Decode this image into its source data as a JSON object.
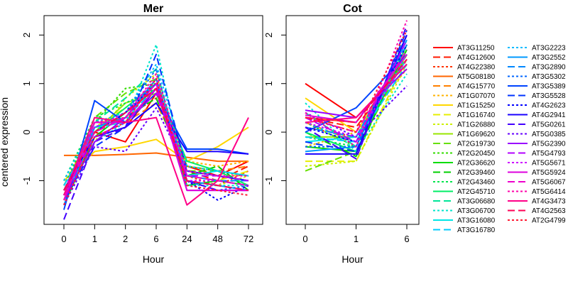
{
  "ylabel": "centered expression",
  "chart_data": [
    {
      "type": "line",
      "title": "Mer",
      "xlabel": "Hour",
      "ylabel": "centered expression",
      "categories": [
        "0",
        "1",
        "2",
        "6",
        "24",
        "48",
        "72"
      ],
      "ylim": [
        -1.9,
        2.4
      ],
      "yticks": [
        -1,
        0,
        1,
        2
      ],
      "grid": false,
      "series": [
        {
          "name": "AT3G11250",
          "color": "#ff0000",
          "values": [
            -1.2,
            0.0,
            -0.2,
            0.8,
            -0.7,
            -0.9,
            -0.6
          ]
        },
        {
          "name": "AT4G12600",
          "color": "#ff1a00",
          "values": [
            -1.4,
            -0.1,
            0.1,
            0.9,
            -0.8,
            -1.0,
            -0.7
          ]
        },
        {
          "name": "AT4G22380",
          "color": "#ff3300",
          "values": [
            -1.3,
            0.2,
            0.3,
            0.7,
            -0.9,
            -1.1,
            -0.8
          ]
        },
        {
          "name": "AT5G08180",
          "color": "#ff6600",
          "values": [
            -0.48,
            -0.48,
            -0.46,
            -0.43,
            -0.52,
            -0.6,
            -0.6
          ]
        },
        {
          "name": "AT4G15770",
          "color": "#ff8000",
          "values": [
            -1.1,
            0.1,
            0.2,
            0.6,
            -0.7,
            -0.8,
            -0.7
          ]
        },
        {
          "name": "AT1G07070",
          "color": "#ffb300",
          "values": [
            -1.3,
            0.0,
            0.4,
            0.9,
            -0.6,
            -0.7,
            -0.6
          ]
        },
        {
          "name": "AT1G15250",
          "color": "#ffd700",
          "values": [
            -1.0,
            -0.4,
            -0.3,
            -0.15,
            -0.6,
            -0.3,
            0.1
          ]
        },
        {
          "name": "AT1G16740",
          "color": "#e6ee00",
          "values": [
            -1.2,
            0.1,
            0.5,
            1.0,
            -0.9,
            -1.0,
            -0.8
          ]
        },
        {
          "name": "AT1G26880",
          "color": "#ccf000",
          "values": [
            -1.4,
            -0.2,
            0.7,
            1.2,
            -1.0,
            -1.1,
            -0.9
          ]
        },
        {
          "name": "AT1G69620",
          "color": "#99e600",
          "values": [
            -1.2,
            0.0,
            0.6,
            0.8,
            -0.8,
            -0.9,
            -1.0
          ]
        },
        {
          "name": "AT2G19730",
          "color": "#66e000",
          "values": [
            -1.3,
            0.3,
            0.8,
            1.1,
            -0.8,
            -0.8,
            -0.9
          ]
        },
        {
          "name": "AT2G20450",
          "color": "#33dd00",
          "values": [
            -1.1,
            0.2,
            0.9,
            1.0,
            -0.7,
            -0.8,
            -0.9
          ]
        },
        {
          "name": "AT2G36620",
          "color": "#00dd00",
          "values": [
            -1.5,
            -0.1,
            0.4,
            0.9,
            -1.1,
            -1.0,
            -1.1
          ]
        },
        {
          "name": "AT2G39460",
          "color": "#00d000",
          "values": [
            -1.2,
            0.1,
            0.3,
            0.7,
            -0.9,
            -0.7,
            -1.2
          ]
        },
        {
          "name": "AT2G43460",
          "color": "#00e64d",
          "values": [
            -1.0,
            0.3,
            0.6,
            0.9,
            -0.8,
            -0.9,
            -1.0
          ]
        },
        {
          "name": "AT2G45710",
          "color": "#00ee66",
          "values": [
            -1.3,
            0.0,
            0.5,
            1.0,
            -0.6,
            -0.8,
            -1.1
          ]
        },
        {
          "name": "AT3G06680",
          "color": "#00e699",
          "values": [
            -1.4,
            0.2,
            0.7,
            1.3,
            -1.0,
            -1.1,
            -1.2
          ]
        },
        {
          "name": "AT3G06700",
          "color": "#00e6cc",
          "values": [
            -1.2,
            -0.2,
            0.2,
            1.8,
            -1.1,
            -1.1,
            -1.1
          ]
        },
        {
          "name": "AT3G16080",
          "color": "#00e6e6",
          "values": [
            -1.3,
            0.1,
            0.2,
            1.1,
            -0.9,
            -0.8,
            -0.9
          ]
        },
        {
          "name": "AT3G16780",
          "color": "#00ccff",
          "values": [
            -1.1,
            0.0,
            0.3,
            0.9,
            -0.8,
            -0.9,
            -1.0
          ]
        },
        {
          "name": "AT3G2223",
          "color": "#00bbff",
          "values": [
            -1.0,
            0.2,
            0.4,
            1.4,
            -0.7,
            -0.8,
            -0.9
          ]
        },
        {
          "name": "AT3G2552",
          "color": "#0099ff",
          "values": [
            -1.5,
            0.1,
            0.3,
            1.1,
            -1.0,
            -1.1,
            -1.2
          ]
        },
        {
          "name": "AT3G2890",
          "color": "#0088ff",
          "values": [
            -1.2,
            0.2,
            0.2,
            0.9,
            -0.9,
            -1.0,
            -1.0
          ]
        },
        {
          "name": "AT3G5302",
          "color": "#0066ff",
          "values": [
            -1.3,
            0.0,
            0.4,
            1.3,
            -1.0,
            -1.2,
            -1.1
          ]
        },
        {
          "name": "AT3G5389",
          "color": "#0044ff",
          "values": [
            -1.6,
            0.65,
            0.2,
            0.8,
            -0.35,
            -0.35,
            -0.45
          ]
        },
        {
          "name": "AT3G5528",
          "color": "#0033ff",
          "values": [
            -1.4,
            -0.3,
            0.1,
            1.6,
            -0.8,
            -0.9,
            -1.0
          ]
        },
        {
          "name": "AT4G2623",
          "color": "#0000ff",
          "values": [
            -1.3,
            0.0,
            0.4,
            1.0,
            -1.0,
            -1.4,
            -1.1
          ]
        },
        {
          "name": "AT4G2941",
          "color": "#1a00ff",
          "values": [
            -1.2,
            -0.1,
            0.1,
            0.6,
            -0.4,
            -0.4,
            -0.45
          ]
        },
        {
          "name": "AT5G0261",
          "color": "#4400ff",
          "values": [
            -1.8,
            -0.2,
            0.1,
            0.9,
            -1.0,
            -1.2,
            -1.2
          ]
        },
        {
          "name": "AT5G0385",
          "color": "#6600ff",
          "values": [
            -1.5,
            -0.3,
            -0.4,
            0.5,
            -0.8,
            -0.9,
            -1.0
          ]
        },
        {
          "name": "AT5G2390",
          "color": "#9900ff",
          "values": [
            -1.4,
            -0.2,
            0.3,
            1.0,
            -1.2,
            -1.2,
            -1.2
          ]
        },
        {
          "name": "AT5G4793",
          "color": "#b300ff",
          "values": [
            -1.3,
            -0.1,
            0.2,
            0.8,
            -0.9,
            -0.9,
            -1.0
          ]
        },
        {
          "name": "AT5G5671",
          "color": "#cc00ff",
          "values": [
            -1.2,
            0.1,
            0.4,
            1.1,
            -1.0,
            -1.0,
            -1.1
          ]
        },
        {
          "name": "AT5G5924",
          "color": "#dd00dd",
          "values": [
            -1.4,
            0.2,
            0.2,
            0.9,
            -1.2,
            -1.2,
            -1.2
          ]
        },
        {
          "name": "AT5G6067",
          "color": "#ee00cc",
          "values": [
            -1.3,
            0.0,
            0.3,
            1.0,
            -0.9,
            -1.0,
            -1.1
          ]
        },
        {
          "name": "AT5G6414",
          "color": "#ff00aa",
          "values": [
            -1.4,
            0.2,
            0.3,
            1.2,
            -0.8,
            -0.9,
            -0.9
          ]
        },
        {
          "name": "AT4G3473",
          "color": "#ff0088",
          "values": [
            -1.3,
            0.3,
            0.2,
            0.3,
            -1.5,
            -1.0,
            0.3
          ]
        },
        {
          "name": "AT4G2563",
          "color": "#ff0055",
          "values": [
            -1.2,
            0.0,
            0.4,
            0.9,
            -1.0,
            -1.1,
            -1.2
          ]
        },
        {
          "name": "AT2G4799",
          "color": "#ff1a33",
          "values": [
            -1.5,
            -0.1,
            0.2,
            1.1,
            -1.1,
            -1.2,
            -1.3
          ]
        }
      ]
    },
    {
      "type": "line",
      "title": "Cot",
      "xlabel": "Hour",
      "ylabel": "",
      "categories": [
        "0",
        "1",
        "6"
      ],
      "ylim": [
        -1.9,
        2.4
      ],
      "yticks": [
        -1,
        0,
        1,
        2
      ],
      "grid": false,
      "series": [
        {
          "name": "AT3G11250",
          "values": [
            1.0,
            0.3,
            1.4
          ]
        },
        {
          "name": "AT4G12600",
          "values": [
            0.3,
            0.1,
            1.5
          ]
        },
        {
          "name": "AT4G22380",
          "values": [
            0.1,
            -0.1,
            1.6
          ]
        },
        {
          "name": "AT5G08180",
          "values": [
            0.3,
            0.2,
            1.6
          ]
        },
        {
          "name": "AT4G15770",
          "values": [
            0.2,
            -0.2,
            1.7
          ]
        },
        {
          "name": "AT1G07070",
          "values": [
            -0.3,
            0.0,
            1.3
          ]
        },
        {
          "name": "AT1G15250",
          "values": [
            0.7,
            0.0,
            1.6
          ]
        },
        {
          "name": "AT1G16740",
          "values": [
            -0.6,
            -0.6,
            1.5
          ]
        },
        {
          "name": "AT1G26880",
          "values": [
            -0.7,
            -0.6,
            1.4
          ]
        },
        {
          "name": "AT1G69620",
          "values": [
            -0.1,
            -0.1,
            1.7
          ]
        },
        {
          "name": "AT2G19730",
          "values": [
            -0.8,
            -0.4,
            1.6
          ]
        },
        {
          "name": "AT2G20450",
          "values": [
            0.2,
            -0.3,
            1.9
          ]
        },
        {
          "name": "AT2G36620",
          "values": [
            -0.3,
            -0.4,
            1.7
          ]
        },
        {
          "name": "AT2G39460",
          "values": [
            0.0,
            -0.5,
            1.8
          ]
        },
        {
          "name": "AT2G43460",
          "values": [
            -0.1,
            -0.3,
            2.0
          ]
        },
        {
          "name": "AT2G45710",
          "values": [
            0.0,
            -0.4,
            1.8
          ]
        },
        {
          "name": "AT3G06680",
          "values": [
            0.4,
            -0.3,
            1.9
          ]
        },
        {
          "name": "AT3G06700",
          "values": [
            0.6,
            -0.4,
            1.2
          ]
        },
        {
          "name": "AT3G16080",
          "values": [
            -0.2,
            -0.1,
            1.5
          ]
        },
        {
          "name": "AT3G16780",
          "values": [
            -0.1,
            -0.2,
            1.4
          ]
        },
        {
          "name": "AT3G2223",
          "values": [
            0.2,
            -0.2,
            1.6
          ]
        },
        {
          "name": "AT3G2552",
          "values": [
            -0.4,
            -0.3,
            1.9
          ]
        },
        {
          "name": "AT3G2890",
          "values": [
            0.1,
            -0.1,
            1.8
          ]
        },
        {
          "name": "AT3G5302",
          "values": [
            -0.3,
            -0.3,
            2.0
          ]
        },
        {
          "name": "AT3G5389",
          "values": [
            0.0,
            0.5,
            1.6
          ]
        },
        {
          "name": "AT3G5528",
          "values": [
            -0.2,
            -0.4,
            2.1
          ]
        },
        {
          "name": "AT4G2623",
          "values": [
            0.1,
            -0.2,
            1.8
          ]
        },
        {
          "name": "AT4G2941",
          "values": [
            -0.45,
            -0.45,
            2.0
          ]
        },
        {
          "name": "AT5G0261",
          "values": [
            0.1,
            -0.55,
            2.2
          ]
        },
        {
          "name": "AT5G0385",
          "values": [
            0.4,
            -0.1,
            0.95
          ]
        },
        {
          "name": "AT5G2390",
          "values": [
            0.45,
            0.3,
            1.3
          ]
        },
        {
          "name": "AT5G4793",
          "values": [
            0.3,
            -0.2,
            1.9
          ]
        },
        {
          "name": "AT5G5671",
          "values": [
            0.2,
            -0.1,
            1.5
          ]
        },
        {
          "name": "AT5G5924",
          "values": [
            0.35,
            0.2,
            1.6
          ]
        },
        {
          "name": "AT5G6067",
          "values": [
            0.3,
            0.0,
            1.7
          ]
        },
        {
          "name": "AT5G6414",
          "values": [
            0.4,
            -0.3,
            2.3
          ]
        },
        {
          "name": "AT4G3473",
          "values": [
            0.2,
            0.3,
            1.4
          ]
        },
        {
          "name": "AT4G2563",
          "values": [
            0.3,
            0.2,
            1.5
          ]
        },
        {
          "name": "AT2G4799",
          "values": [
            0.3,
            0.0,
            2.1
          ]
        }
      ]
    }
  ]
}
